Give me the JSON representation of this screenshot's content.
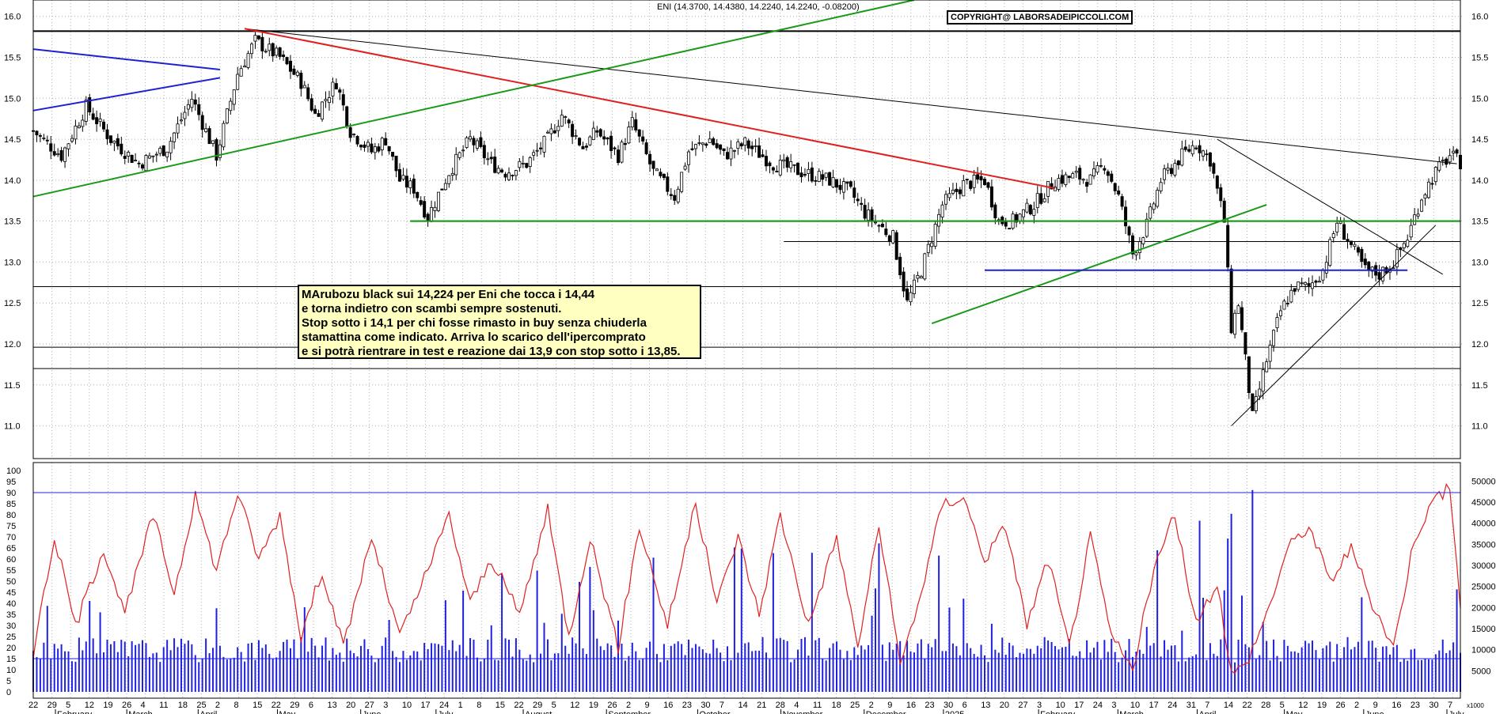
{
  "header": {
    "title": "ENI (14.3700, 14.4380, 14.2240, 14.2240, -0.08200)",
    "copyright": "COPYRIGHT@ LABORSADEIPICCOLI.COM"
  },
  "annotation": {
    "lines": [
      "MArubozu black sui 14,224 per Eni che tocca i 14,44",
      "e torna indietro con scambi sempre sostenuti.",
      "Stop sotto i 14,1 per chi fosse rimasto in buy senza chiuderla",
      "stamattina come indicato. Arriva lo scarico dell'ipercomprato",
      "e si potrà rientrare in test e reazione dai 13,9 con stop sotto i 13,85."
    ]
  },
  "colors": {
    "up": "#ffffff",
    "down": "#000000",
    "resistance_black": "#000000",
    "trend_green": "#1a9a1a",
    "trend_red": "#e02020",
    "trend_blue": "#2020d0",
    "rsi_line": "#e02020",
    "volume_bars": "#2020e0",
    "grid": "#b0b0b0"
  },
  "chart_data": [
    {
      "type": "candlestick",
      "symbol": "ENI",
      "ylim": [
        10.6,
        16.2
      ],
      "y_ticks": [
        "11.0",
        "11.5",
        "12.0",
        "12.5",
        "13.0",
        "13.5",
        "14.0",
        "14.5",
        "15.0",
        "15.5",
        "16.0"
      ],
      "grid": true,
      "close_path": [
        [
          0,
          14.6
        ],
        [
          8,
          14.3
        ],
        [
          15,
          14.9
        ],
        [
          22,
          14.5
        ],
        [
          30,
          14.2
        ],
        [
          38,
          14.4
        ],
        [
          45,
          15.0
        ],
        [
          52,
          14.3
        ],
        [
          58,
          15.3
        ],
        [
          63,
          15.7
        ],
        [
          70,
          15.5
        ],
        [
          76,
          15.2
        ],
        [
          80,
          14.8
        ],
        [
          86,
          15.2
        ],
        [
          90,
          14.6
        ],
        [
          96,
          14.35
        ],
        [
          100,
          14.5
        ],
        [
          104,
          14.0
        ],
        [
          108,
          13.9
        ],
        [
          112,
          13.55
        ],
        [
          118,
          14.1
        ],
        [
          124,
          14.5
        ],
        [
          130,
          14.2
        ],
        [
          134,
          14.1
        ],
        [
          140,
          14.2
        ],
        [
          146,
          14.5
        ],
        [
          150,
          14.8
        ],
        [
          156,
          14.4
        ],
        [
          160,
          14.6
        ],
        [
          166,
          14.3
        ],
        [
          170,
          14.7
        ],
        [
          176,
          14.1
        ],
        [
          182,
          13.8
        ],
        [
          186,
          14.35
        ],
        [
          192,
          14.5
        ],
        [
          196,
          14.3
        ],
        [
          202,
          14.45
        ],
        [
          210,
          14.2
        ],
        [
          218,
          14.1
        ],
        [
          226,
          14.0
        ],
        [
          232,
          13.85
        ],
        [
          236,
          13.6
        ],
        [
          240,
          13.45
        ],
        [
          244,
          13.3
        ],
        [
          248,
          12.5
        ],
        [
          252,
          12.9
        ],
        [
          258,
          13.7
        ],
        [
          264,
          13.95
        ],
        [
          270,
          14.0
        ],
        [
          274,
          13.5
        ],
        [
          278,
          13.5
        ],
        [
          284,
          13.7
        ],
        [
          290,
          14.0
        ],
        [
          296,
          14.05
        ],
        [
          300,
          14.0
        ],
        [
          304,
          14.2
        ],
        [
          308,
          13.8
        ],
        [
          312,
          13.1
        ],
        [
          316,
          13.45
        ],
        [
          320,
          14.0
        ],
        [
          326,
          14.3
        ],
        [
          330,
          14.45
        ],
        [
          334,
          14.25
        ],
        [
          338,
          13.5
        ],
        [
          340,
          12.2
        ],
        [
          342,
          12.5
        ],
        [
          346,
          11.1
        ],
        [
          350,
          11.8
        ],
        [
          354,
          12.4
        ],
        [
          358,
          12.7
        ],
        [
          362,
          12.7
        ],
        [
          366,
          12.9
        ],
        [
          370,
          13.5
        ],
        [
          374,
          13.2
        ],
        [
          378,
          12.9
        ],
        [
          382,
          12.85
        ],
        [
          386,
          13.0
        ],
        [
          390,
          13.3
        ],
        [
          394,
          13.8
        ],
        [
          398,
          14.1
        ],
        [
          402,
          14.3
        ],
        [
          405,
          14.22
        ]
      ],
      "resistance_levels": [
        15.82,
        13.5,
        13.25,
        12.7,
        11.96,
        11.7
      ],
      "trendlines": [
        {
          "color": "black",
          "from": [
            60,
            15.85
          ],
          "to": [
            404,
            14.2
          ]
        },
        {
          "color": "red",
          "from": [
            60,
            15.85
          ],
          "to": [
            290,
            13.9
          ]
        },
        {
          "color": "green",
          "from": [
            0,
            13.8
          ],
          "to": [
            250,
            16.2
          ]
        },
        {
          "color": "green",
          "from": [
            255,
            12.25
          ],
          "to": [
            350,
            13.7
          ]
        },
        {
          "color": "green",
          "from": [
            107,
            13.5
          ],
          "to": [
            405,
            13.5
          ]
        },
        {
          "color": "blue",
          "from": [
            0,
            15.6
          ],
          "to": [
            53,
            15.35
          ]
        },
        {
          "color": "blue",
          "from": [
            0,
            14.85
          ],
          "to": [
            53,
            15.25
          ]
        },
        {
          "color": "blue",
          "from": [
            270,
            12.9
          ],
          "to": [
            390,
            12.9
          ]
        },
        {
          "color": "black",
          "from": [
            340,
            11.0
          ],
          "to": [
            398,
            13.45
          ]
        },
        {
          "color": "black",
          "from": [
            336,
            14.5
          ],
          "to": [
            400,
            12.85
          ]
        }
      ]
    },
    {
      "type": "line+bar",
      "name_rsi": "RSI",
      "rsi_ylim": [
        0,
        100
      ],
      "rsi_ticks": [
        "0",
        "5",
        "10",
        "15",
        "20",
        "25",
        "30",
        "35",
        "40",
        "45",
        "50",
        "55",
        "60",
        "65",
        "70",
        "75",
        "80",
        "85",
        "90",
        "95",
        "100"
      ],
      "rsi_guides": [
        90,
        15
      ],
      "volume_ylim": [
        0,
        52500
      ],
      "volume_ticks": [
        "5000",
        "10000",
        "15000",
        "20000",
        "25000",
        "30000",
        "35000",
        "40000",
        "45000",
        "50000"
      ],
      "volume_unit": "x1000",
      "rsi": [
        [
          0,
          18
        ],
        [
          6,
          70
        ],
        [
          12,
          30
        ],
        [
          20,
          65
        ],
        [
          26,
          35
        ],
        [
          34,
          80
        ],
        [
          40,
          45
        ],
        [
          46,
          88
        ],
        [
          52,
          55
        ],
        [
          58,
          90
        ],
        [
          64,
          60
        ],
        [
          70,
          80
        ],
        [
          76,
          25
        ],
        [
          82,
          55
        ],
        [
          88,
          20
        ],
        [
          96,
          70
        ],
        [
          104,
          25
        ],
        [
          112,
          55
        ],
        [
          118,
          80
        ],
        [
          124,
          40
        ],
        [
          130,
          60
        ],
        [
          138,
          35
        ],
        [
          146,
          82
        ],
        [
          152,
          25
        ],
        [
          158,
          70
        ],
        [
          166,
          20
        ],
        [
          172,
          75
        ],
        [
          180,
          30
        ],
        [
          188,
          85
        ],
        [
          194,
          40
        ],
        [
          200,
          70
        ],
        [
          206,
          35
        ],
        [
          212,
          80
        ],
        [
          220,
          30
        ],
        [
          228,
          70
        ],
        [
          234,
          20
        ],
        [
          240,
          75
        ],
        [
          246,
          12
        ],
        [
          252,
          45
        ],
        [
          258,
          85
        ],
        [
          264,
          88
        ],
        [
          270,
          60
        ],
        [
          276,
          75
        ],
        [
          282,
          30
        ],
        [
          288,
          60
        ],
        [
          294,
          20
        ],
        [
          300,
          70
        ],
        [
          306,
          25
        ],
        [
          312,
          10
        ],
        [
          318,
          55
        ],
        [
          324,
          80
        ],
        [
          330,
          30
        ],
        [
          336,
          50
        ],
        [
          340,
          8
        ],
        [
          344,
          12
        ],
        [
          350,
          35
        ],
        [
          356,
          65
        ],
        [
          362,
          75
        ],
        [
          368,
          50
        ],
        [
          374,
          65
        ],
        [
          380,
          40
        ],
        [
          386,
          20
        ],
        [
          392,
          70
        ],
        [
          398,
          88
        ],
        [
          402,
          92
        ],
        [
          405,
          40
        ]
      ],
      "volume_note": "daily volume bars, mostly 7000-15000 with spikes up to ~50000"
    }
  ],
  "x_axis": {
    "day_ticks": [
      "22",
      "29",
      "5",
      "12",
      "19",
      "26",
      "4",
      "11",
      "18",
      "25",
      "2",
      "8",
      "15",
      "22",
      "29",
      "6",
      "13",
      "20",
      "27",
      "3",
      "10",
      "17",
      "24",
      "1",
      "8",
      "15",
      "22",
      "29",
      "5",
      "12",
      "19",
      "26",
      "2",
      "9",
      "16",
      "23",
      "30",
      "7",
      "14",
      "21",
      "28",
      "4",
      "11",
      "18",
      "25",
      "2",
      "9",
      "16",
      "23",
      "30",
      "6",
      "13",
      "20",
      "27",
      "3",
      "10",
      "17",
      "24",
      "3",
      "10",
      "17",
      "24",
      "31",
      "7",
      "14",
      "22",
      "28",
      "5",
      "12",
      "19",
      "26",
      "2",
      "9",
      "16",
      "23",
      "30",
      "7"
    ],
    "months": [
      {
        "label": "February",
        "idx": 6
      },
      {
        "label": "March",
        "idx": 24
      },
      {
        "label": "April",
        "idx": 42
      },
      {
        "label": "May",
        "idx": 62
      },
      {
        "label": "June",
        "idx": 83
      },
      {
        "label": "July",
        "idx": 102
      },
      {
        "label": "August",
        "idx": 124
      },
      {
        "label": "September",
        "idx": 145
      },
      {
        "label": "October",
        "idx": 168
      },
      {
        "label": "November",
        "idx": 189
      },
      {
        "label": "December",
        "idx": 210
      },
      {
        "label": "2025",
        "idx": 230
      },
      {
        "label": "February",
        "idx": 254
      },
      {
        "label": "March",
        "idx": 274
      },
      {
        "label": "April",
        "idx": 294
      },
      {
        "label": "May",
        "idx": 316
      },
      {
        "label": "June",
        "idx": 336
      },
      {
        "label": "July",
        "idx": 357
      }
    ]
  }
}
